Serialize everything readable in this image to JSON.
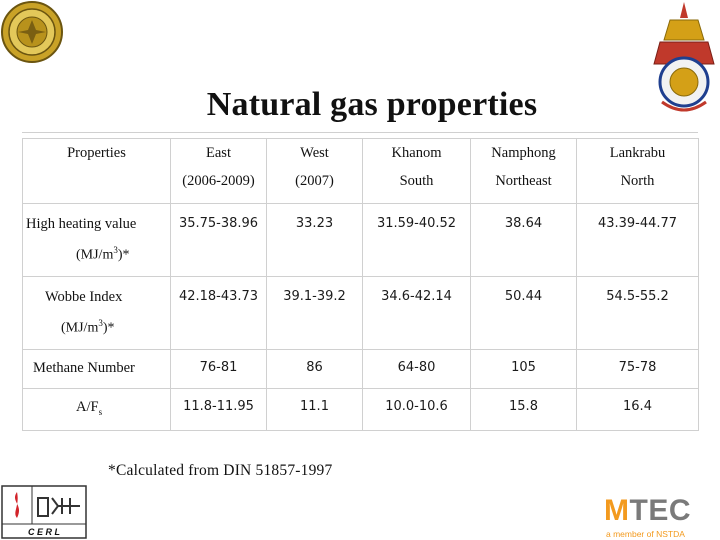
{
  "title": "Natural gas properties",
  "table": {
    "header_row1": [
      "Properties",
      "East",
      "West",
      "Khanom",
      "Namphong",
      "Lankrabu"
    ],
    "header_row2": [
      "",
      "(2006-2009)",
      "(2007)",
      "South",
      "Northeast",
      "North"
    ],
    "rows": [
      {
        "label": "High heating value",
        "unit_base": "(MJ/m",
        "unit_sup": "3",
        "unit_end": ")*",
        "values": [
          "35.75-38.96",
          "33.23",
          "31.59-40.52",
          "38.64",
          "43.39-44.77"
        ]
      },
      {
        "label": "Wobbe Index",
        "unit_base": "(MJ/m",
        "unit_sup": "3",
        "unit_end": ")*",
        "values": [
          "42.18-43.73",
          "39.1-39.2",
          "34.6-42.14",
          "50.44",
          "54.5-55.2"
        ]
      },
      {
        "label": "Methane Number",
        "values": [
          "76-81",
          "86",
          "64-80",
          "105",
          "75-78"
        ]
      },
      {
        "label_base": "A/F",
        "label_sub": "s",
        "values": [
          "11.8-11.95",
          "11.1",
          "10.0-10.6",
          "15.8",
          "16.4"
        ]
      }
    ]
  },
  "footnote": "*Calculated from DIN 51857-1997",
  "logos": {
    "cerl_text": "C E R L",
    "mtec_m": "M",
    "mtec_rest": "TEC",
    "mtec_tagline": "a member of NSTDA"
  },
  "colors": {
    "mtec_orange": "#f39a1e",
    "cerl_red": "#d2232a",
    "seal_gold": "#c9a227"
  }
}
